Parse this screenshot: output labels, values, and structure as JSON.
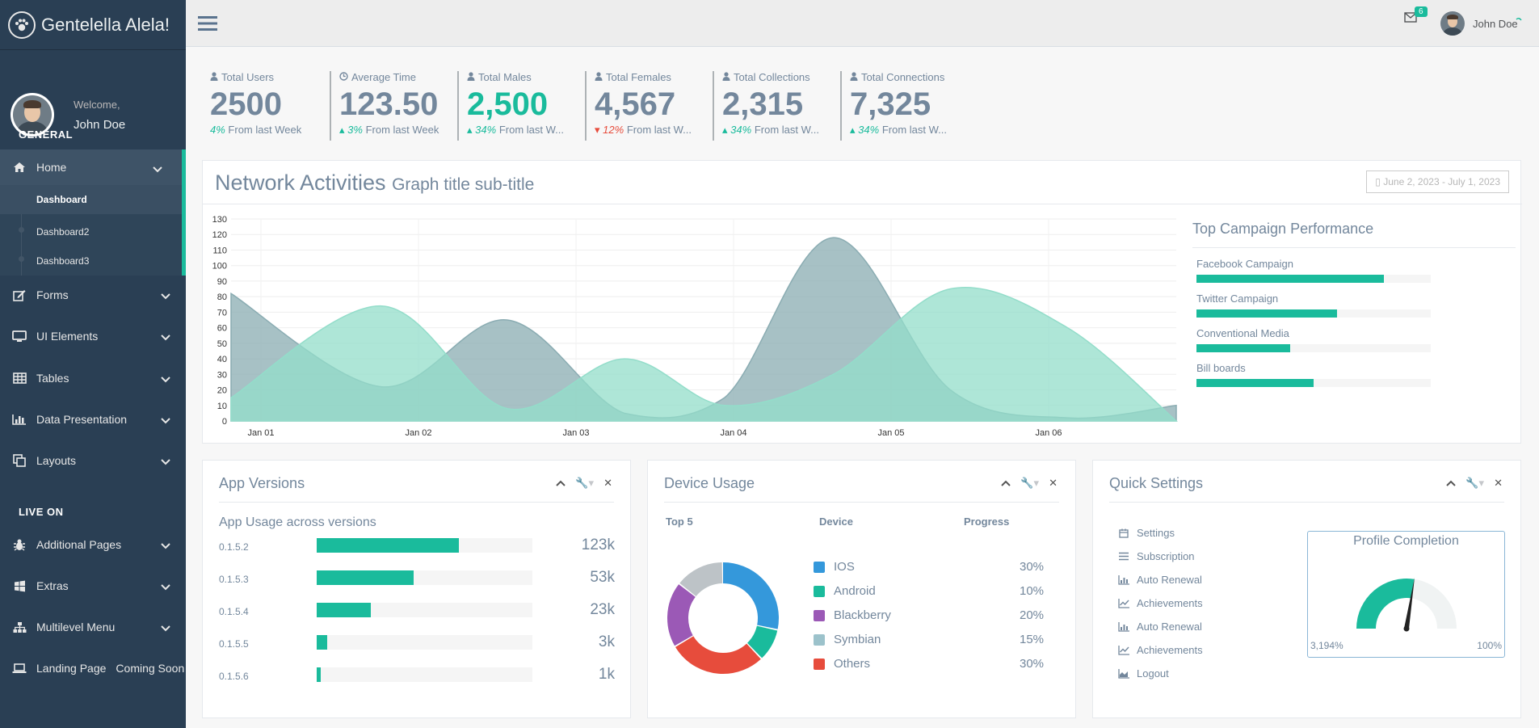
{
  "brand": {
    "title": "Gentelella Alela!"
  },
  "profile": {
    "welcome": "Welcome,",
    "name": "John Doe"
  },
  "sidebar": {
    "section_general": "GENERAL",
    "section_live": "LIVE ON",
    "home": "Home",
    "sub": [
      "Dashboard",
      "Dashboard2",
      "Dashboard3"
    ],
    "forms": "Forms",
    "ui_elements": "UI Elements",
    "tables": "Tables",
    "data_presentation": "Data Presentation",
    "layouts": "Layouts",
    "additional_pages": "Additional Pages",
    "extras": "Extras",
    "multilevel_menu": "Multilevel Menu",
    "landing_page": "Landing Page",
    "coming_soon": "Coming Soon"
  },
  "topbar": {
    "mail_count": "6",
    "user_name": "John Doe"
  },
  "tiles": [
    {
      "label": "Total Users",
      "value": "2500",
      "delta": "4%",
      "foot": "From last Week"
    },
    {
      "label": "Average Time",
      "value": "123.50",
      "delta": "3%",
      "foot": "From last Week"
    },
    {
      "label": "Total Males",
      "value": "2,500",
      "delta": "34%",
      "foot": "From last W..."
    },
    {
      "label": "Total Females",
      "value": "4,567",
      "delta": "12%",
      "foot": "From last W..."
    },
    {
      "label": "Total Collections",
      "value": "2,315",
      "delta": "34%",
      "foot": "From last W..."
    },
    {
      "label": "Total Connections",
      "value": "7,325",
      "delta": "34%",
      "foot": "From last W..."
    }
  ],
  "network": {
    "title": "Network Activities",
    "subtitle": "Graph title sub-title",
    "daterange": "June 2, 2023 - July 1, 2023"
  },
  "chart_data": {
    "type": "area",
    "x": [
      "Jan 01",
      "Jan 02",
      "Jan 03",
      "Jan 04",
      "Jan 05",
      "Jan 06"
    ],
    "ylim": [
      0,
      130
    ],
    "yticks": [
      0,
      10,
      20,
      30,
      40,
      50,
      60,
      70,
      80,
      90,
      100,
      110,
      120,
      130
    ],
    "series": [
      {
        "color": "#8AACB2",
        "points": [
          [
            0.0,
            82
          ],
          [
            0.9,
            22
          ],
          [
            1.65,
            65
          ],
          [
            2.35,
            5
          ],
          [
            2.95,
            15
          ],
          [
            3.6,
            118
          ],
          [
            4.3,
            20
          ],
          [
            5.0,
            2
          ],
          [
            5.65,
            10
          ]
        ]
      },
      {
        "color": "#93DDCA",
        "points": [
          [
            0.0,
            15
          ],
          [
            0.9,
            74
          ],
          [
            1.65,
            8
          ],
          [
            2.35,
            40
          ],
          [
            2.95,
            10
          ],
          [
            3.6,
            30
          ],
          [
            4.3,
            85
          ],
          [
            5.0,
            60
          ],
          [
            5.65,
            0
          ]
        ]
      }
    ],
    "grid": true
  },
  "campaigns": {
    "title": "Top Campaign Performance",
    "items": [
      {
        "label": "Facebook Campaign",
        "value": 80
      },
      {
        "label": "Twitter Campaign",
        "value": 60
      },
      {
        "label": "Conventional Media",
        "value": 40
      },
      {
        "label": "Bill boards",
        "value": 50
      }
    ]
  },
  "app_versions": {
    "title": "App Versions",
    "subtitle": "App Usage across versions",
    "rows": [
      {
        "version": "0.1.5.2",
        "value": "123k",
        "fraction": 0.66
      },
      {
        "version": "0.1.5.3",
        "value": "53k",
        "fraction": 0.45
      },
      {
        "version": "0.1.5.4",
        "value": "23k",
        "fraction": 0.25
      },
      {
        "version": "0.1.5.5",
        "value": "3k",
        "fraction": 0.05
      },
      {
        "version": "0.1.5.6",
        "value": "1k",
        "fraction": 0.02
      }
    ]
  },
  "device_usage": {
    "title": "Device Usage",
    "headers": {
      "top": "Top 5",
      "device": "Device",
      "progress": "Progress"
    },
    "items": [
      {
        "name": "IOS",
        "percent": "30%",
        "color": "#3498DB"
      },
      {
        "name": "Android",
        "percent": "10%",
        "color": "#1ABB9C"
      },
      {
        "name": "Blackberry",
        "percent": "20%",
        "color": "#9B59B6"
      },
      {
        "name": "Symbian",
        "percent": "15%",
        "color": "#9CC2CB"
      },
      {
        "name": "Others",
        "percent": "30%",
        "color": "#E74C3C"
      }
    ],
    "donut": [
      {
        "value": 30,
        "color": "#3498DB"
      },
      {
        "value": 10,
        "color": "#1ABB9C"
      },
      {
        "value": 30,
        "color": "#E74C3C"
      },
      {
        "value": 20,
        "color": "#9B59B6"
      },
      {
        "value": 15,
        "color": "#BDC3C7"
      }
    ]
  },
  "quick_settings": {
    "title": "Quick Settings",
    "items": [
      {
        "label": "Settings",
        "icon": "calendar-icon"
      },
      {
        "label": "Subscription",
        "icon": "list-icon"
      },
      {
        "label": "Auto Renewal",
        "icon": "bar-chart-icon"
      },
      {
        "label": "Achievements",
        "icon": "line-chart-icon"
      },
      {
        "label": "Auto Renewal",
        "icon": "bar-chart-icon"
      },
      {
        "label": "Achievements",
        "icon": "line-chart-icon"
      },
      {
        "label": "Logout",
        "icon": "area-chart-icon"
      }
    ],
    "profile_completion": {
      "title": "Profile Completion",
      "min": "3,194%",
      "max": "100%",
      "fraction": 0.55
    }
  }
}
